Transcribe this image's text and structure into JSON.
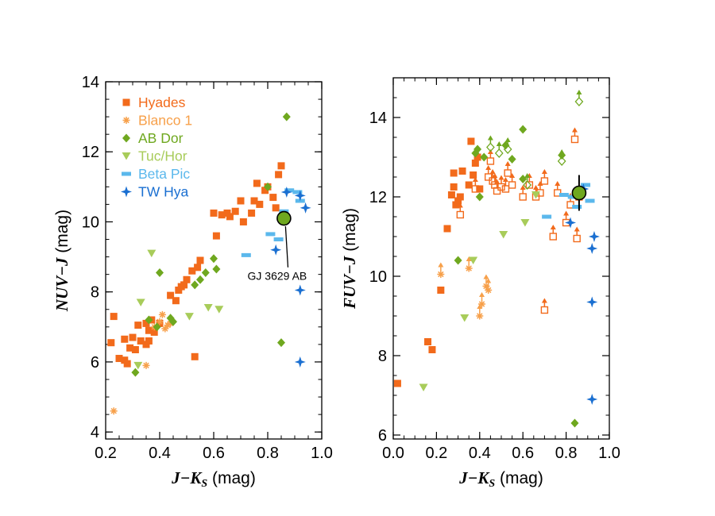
{
  "colors": {
    "Hyades": "#f26a1b",
    "Blanco 1": "#f7a04a",
    "AB Dor": "#6fa81f",
    "Tuc/Hor": "#a8cc5a",
    "Beta Pic": "#5bb8ec",
    "TW Hya": "#1a6fd1",
    "GJ": "#6fa81f"
  },
  "chart_data": [
    {
      "type": "scatter",
      "title": "",
      "xlabel": "J−K_S (mag)",
      "ylabel": "NUV−J (mag)",
      "xlim": [
        0.2,
        1.0
      ],
      "ylim": [
        3.8,
        14.0
      ],
      "xticks": [
        "0.2",
        "0.4",
        "0.6",
        "0.8",
        "1.0"
      ],
      "yticks": [
        "4",
        "6",
        "8",
        "10",
        "12",
        "14"
      ],
      "legend": [
        "Hyades",
        "Blanco 1",
        "AB Dor",
        "Tuc/Hor",
        "Beta Pic",
        "TW Hya"
      ],
      "legend_position": "upper-left",
      "annotation": "GJ 3629 AB",
      "target": {
        "x": 0.86,
        "y": 10.1
      },
      "series": [
        {
          "name": "Hyades",
          "marker": "square",
          "points": [
            [
              0.22,
              6.55
            ],
            [
              0.23,
              7.3
            ],
            [
              0.25,
              6.1
            ],
            [
              0.27,
              6.05
            ],
            [
              0.27,
              6.65
            ],
            [
              0.28,
              5.95
            ],
            [
              0.29,
              6.4
            ],
            [
              0.3,
              6.7
            ],
            [
              0.31,
              6.35
            ],
            [
              0.32,
              7.05
            ],
            [
              0.33,
              6.6
            ],
            [
              0.35,
              6.5
            ],
            [
              0.35,
              7.1
            ],
            [
              0.36,
              6.9
            ],
            [
              0.36,
              6.6
            ],
            [
              0.37,
              7.2
            ],
            [
              0.38,
              6.85
            ],
            [
              0.4,
              7.1
            ],
            [
              0.44,
              7.9
            ],
            [
              0.46,
              7.75
            ],
            [
              0.47,
              8.05
            ],
            [
              0.48,
              8.15
            ],
            [
              0.49,
              8.2
            ],
            [
              0.5,
              8.35
            ],
            [
              0.52,
              8.6
            ],
            [
              0.53,
              6.15
            ],
            [
              0.54,
              8.7
            ],
            [
              0.55,
              8.9
            ],
            [
              0.6,
              10.25
            ],
            [
              0.61,
              9.6
            ],
            [
              0.63,
              10.2
            ],
            [
              0.65,
              10.25
            ],
            [
              0.66,
              10.15
            ],
            [
              0.68,
              10.3
            ],
            [
              0.7,
              10.6
            ],
            [
              0.71,
              10.0
            ],
            [
              0.74,
              10.25
            ],
            [
              0.75,
              10.6
            ],
            [
              0.76,
              11.1
            ],
            [
              0.77,
              10.5
            ],
            [
              0.79,
              10.9
            ],
            [
              0.8,
              11.0
            ],
            [
              0.82,
              10.7
            ],
            [
              0.83,
              10.4
            ],
            [
              0.84,
              11.35
            ],
            [
              0.85,
              11.6
            ]
          ]
        },
        {
          "name": "Blanco 1",
          "marker": "asterisk",
          "points": [
            [
              0.23,
              4.6
            ],
            [
              0.35,
              5.9
            ],
            [
              0.38,
              7.0
            ],
            [
              0.4,
              7.15
            ],
            [
              0.41,
              7.35
            ],
            [
              0.42,
              6.95
            ],
            [
              0.43,
              7.05
            ],
            [
              0.44,
              7.1
            ]
          ]
        },
        {
          "name": "AB Dor",
          "marker": "diamond",
          "points": [
            [
              0.31,
              5.7
            ],
            [
              0.36,
              7.2
            ],
            [
              0.39,
              7.0
            ],
            [
              0.4,
              8.55
            ],
            [
              0.44,
              7.25
            ],
            [
              0.45,
              7.15
            ],
            [
              0.53,
              8.2
            ],
            [
              0.55,
              8.35
            ],
            [
              0.57,
              8.55
            ],
            [
              0.6,
              8.95
            ],
            [
              0.61,
              8.65
            ],
            [
              0.8,
              11.0
            ],
            [
              0.85,
              6.55
            ],
            [
              0.87,
              13.0
            ]
          ]
        },
        {
          "name": "Tuc/Hor",
          "marker": "triangle-down",
          "points": [
            [
              0.32,
              5.9
            ],
            [
              0.33,
              7.7
            ],
            [
              0.37,
              9.1
            ],
            [
              0.51,
              7.3
            ],
            [
              0.58,
              7.55
            ],
            [
              0.62,
              7.5
            ]
          ]
        },
        {
          "name": "Beta Pic",
          "marker": "dash",
          "points": [
            [
              0.72,
              9.05
            ],
            [
              0.81,
              9.65
            ],
            [
              0.84,
              9.5
            ],
            [
              0.86,
              10.3
            ],
            [
              0.88,
              10.9
            ],
            [
              0.91,
              10.85
            ],
            [
              0.92,
              10.6
            ]
          ]
        },
        {
          "name": "TW Hya",
          "marker": "star",
          "points": [
            [
              0.83,
              9.2
            ],
            [
              0.87,
              10.85
            ],
            [
              0.92,
              10.75
            ],
            [
              0.92,
              8.05
            ],
            [
              0.92,
              6.0
            ],
            [
              0.94,
              10.4
            ]
          ]
        }
      ]
    },
    {
      "type": "scatter",
      "title": "",
      "xlabel": "J−K_S (mag)",
      "ylabel": "FUV−J (mag)",
      "xlim": [
        0.0,
        1.0
      ],
      "ylim": [
        5.9,
        15.0
      ],
      "xticks": [
        "0.0",
        "0.2",
        "0.4",
        "0.6",
        "0.8",
        "1.0"
      ],
      "yticks": [
        "6",
        "8",
        "10",
        "12",
        "14"
      ],
      "target": {
        "x": 0.86,
        "y": 12.1,
        "yerr": 0.45
      },
      "series": [
        {
          "name": "Hyades",
          "marker": "square",
          "points": [
            [
              0.02,
              7.3
            ],
            [
              0.16,
              8.35
            ],
            [
              0.18,
              8.15
            ],
            [
              0.22,
              9.65
            ],
            [
              0.25,
              11.2
            ],
            [
              0.27,
              12.05
            ],
            [
              0.28,
              12.6
            ],
            [
              0.28,
              12.25
            ],
            [
              0.29,
              11.8
            ],
            [
              0.3,
              11.9
            ],
            [
              0.31,
              12.0
            ],
            [
              0.32,
              12.65
            ],
            [
              0.35,
              12.3
            ],
            [
              0.36,
              13.4
            ],
            [
              0.37,
              12.55
            ],
            [
              0.38,
              12.85
            ],
            [
              0.39,
              13.0
            ],
            [
              0.4,
              12.2
            ]
          ]
        },
        {
          "name": "Hyades (limits)",
          "marker": "open-square-uparrow",
          "points": [
            [
              0.31,
              11.55
            ],
            [
              0.38,
              12.2
            ],
            [
              0.44,
              12.5
            ],
            [
              0.45,
              12.9
            ],
            [
              0.46,
              12.4
            ],
            [
              0.47,
              12.3
            ],
            [
              0.48,
              12.15
            ],
            [
              0.5,
              12.25
            ],
            [
              0.52,
              12.2
            ],
            [
              0.53,
              12.6
            ],
            [
              0.55,
              12.3
            ],
            [
              0.6,
              12.0
            ],
            [
              0.63,
              12.3
            ],
            [
              0.66,
              12.0
            ],
            [
              0.68,
              12.1
            ],
            [
              0.7,
              9.15
            ],
            [
              0.7,
              12.4
            ],
            [
              0.74,
              11.0
            ],
            [
              0.76,
              12.1
            ],
            [
              0.8,
              11.35
            ],
            [
              0.82,
              11.8
            ],
            [
              0.84,
              13.45
            ],
            [
              0.85,
              10.95
            ],
            [
              0.86,
              12.0
            ]
          ]
        },
        {
          "name": "Blanco 1",
          "marker": "asterisk-uparrow",
          "points": [
            [
              0.22,
              10.05
            ],
            [
              0.35,
              10.2
            ],
            [
              0.4,
              9.0
            ],
            [
              0.41,
              9.3
            ],
            [
              0.43,
              9.75
            ],
            [
              0.44,
              9.65
            ]
          ]
        },
        {
          "name": "AB Dor",
          "marker": "diamond",
          "points": [
            [
              0.3,
              10.4
            ],
            [
              0.38,
              13.1
            ],
            [
              0.39,
              13.2
            ],
            [
              0.4,
              12.0
            ],
            [
              0.42,
              13.0
            ],
            [
              0.52,
              13.3
            ],
            [
              0.55,
              12.95
            ],
            [
              0.6,
              12.45
            ],
            [
              0.6,
              13.7
            ],
            [
              0.78,
              13.05
            ],
            [
              0.84,
              6.3
            ]
          ]
        },
        {
          "name": "AB Dor (limits)",
          "marker": "open-diamond-uparrow",
          "points": [
            [
              0.45,
              13.25
            ],
            [
              0.49,
              13.1
            ],
            [
              0.53,
              13.2
            ],
            [
              0.62,
              12.3
            ],
            [
              0.78,
              12.9
            ],
            [
              0.86,
              14.4
            ]
          ]
        },
        {
          "name": "Tuc/Hor",
          "marker": "triangle-down",
          "points": [
            [
              0.14,
              7.2
            ],
            [
              0.33,
              8.95
            ],
            [
              0.37,
              10.4
            ],
            [
              0.51,
              11.05
            ],
            [
              0.61,
              11.35
            ],
            [
              0.66,
              12.05
            ]
          ]
        },
        {
          "name": "Beta Pic",
          "marker": "dash",
          "points": [
            [
              0.71,
              11.5
            ],
            [
              0.79,
              12.05
            ],
            [
              0.83,
              12.0
            ],
            [
              0.85,
              11.75
            ],
            [
              0.89,
              12.3
            ],
            [
              0.91,
              11.9
            ]
          ]
        },
        {
          "name": "TW Hya",
          "marker": "star",
          "points": [
            [
              0.82,
              11.35
            ],
            [
              0.88,
              12.2
            ],
            [
              0.92,
              10.7
            ],
            [
              0.92,
              9.35
            ],
            [
              0.92,
              6.9
            ],
            [
              0.93,
              11.0
            ]
          ]
        }
      ]
    }
  ]
}
